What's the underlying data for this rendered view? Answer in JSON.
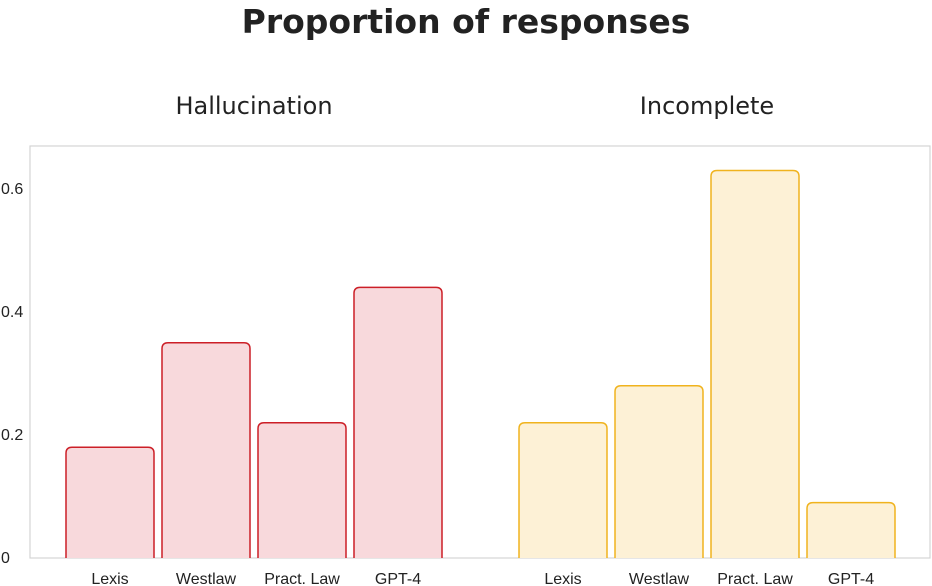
{
  "chart_data": {
    "type": "bar",
    "title": "Proportion of responses",
    "xlabel": "",
    "ylabel": "",
    "categories": [
      "Lexis",
      "Westlaw",
      "Pract. Law",
      "GPT-4"
    ],
    "ylim": [
      0,
      0.66
    ],
    "yticks": [
      0,
      0.2,
      0.4,
      0.6
    ],
    "ytick_labels": [
      "0",
      "0.2",
      "0.4",
      "0.6"
    ],
    "grid": false,
    "panels": [
      {
        "title": "Hallucination",
        "values": [
          0.18,
          0.35,
          0.22,
          0.44
        ],
        "fill": "#f8d9dc",
        "stroke": "#cc1f27"
      },
      {
        "title": "Incomplete",
        "values": [
          0.22,
          0.28,
          0.63,
          0.09
        ],
        "fill": "#fdf1d6",
        "stroke": "#f0b31e"
      }
    ]
  }
}
